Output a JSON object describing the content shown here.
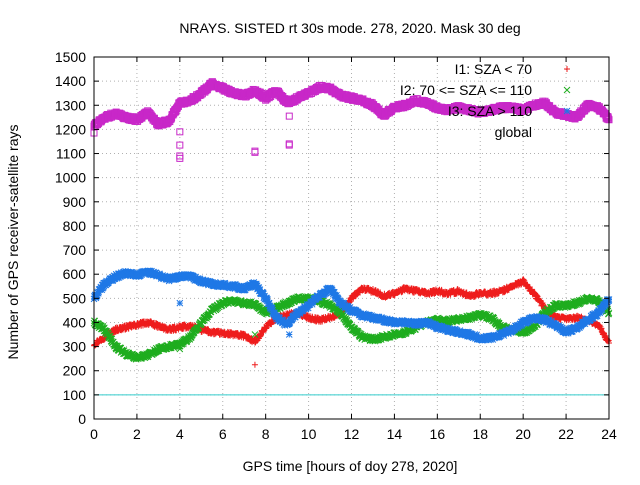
{
  "chart_data": {
    "type": "scatter",
    "title": "NRAYS. SISTED rt 30s mode. 278, 2020. Mask 30 deg",
    "xlabel": "GPS time [hours of doy 278, 2020]",
    "ylabel": "Number of GPS receiver-satellite rays",
    "xlim": [
      0,
      24
    ],
    "ylim": [
      0,
      1500
    ],
    "x_ticks": [
      "0",
      "2",
      "4",
      "6",
      "8",
      "10",
      "12",
      "14",
      "16",
      "18",
      "20",
      "22",
      "24"
    ],
    "y_ticks": [
      "0",
      "100",
      "200",
      "300",
      "400",
      "500",
      "600",
      "700",
      "800",
      "900",
      "1000",
      "1100",
      "1200",
      "1300",
      "1400",
      "1500"
    ],
    "grid": true,
    "legend_position": "top-right",
    "threshold_line": {
      "y": 100,
      "color": "#33cccc"
    },
    "series": [
      {
        "name": "I1: SZA < 70",
        "color": "#ee1c1c",
        "marker": "plus",
        "x": [
          0,
          0.5,
          1,
          1.5,
          2,
          2.5,
          3,
          3.5,
          4,
          4.5,
          5,
          5.5,
          6,
          6.5,
          7,
          7.5,
          8,
          8.5,
          9,
          9.5,
          10,
          10.5,
          11,
          11.5,
          12,
          12.5,
          13,
          13.5,
          14,
          14.5,
          15,
          15.5,
          16,
          16.5,
          17,
          17.5,
          18,
          18.5,
          19,
          19.5,
          20,
          20.5,
          21,
          21.5,
          22,
          22.5,
          23,
          23.5,
          24
        ],
        "values": [
          310,
          340,
          370,
          380,
          390,
          400,
          385,
          370,
          380,
          385,
          370,
          360,
          355,
          350,
          345,
          320,
          380,
          420,
          430,
          440,
          420,
          410,
          420,
          440,
          500,
          540,
          530,
          510,
          520,
          540,
          530,
          520,
          530,
          520,
          530,
          510,
          520,
          520,
          530,
          550,
          570,
          520,
          460,
          420,
          415,
          420,
          410,
          390,
          315
        ],
        "outliers": [
          {
            "x": 7.5,
            "y": 225
          },
          {
            "x": 9.2,
            "y": 430
          }
        ]
      },
      {
        "name": "I2: 70 <= SZA <= 110",
        "color": "#1fad1f",
        "marker": "cross",
        "x": [
          0,
          0.5,
          1,
          1.5,
          2,
          2.5,
          3,
          3.5,
          4,
          4.5,
          5,
          5.5,
          6,
          6.5,
          7,
          7.5,
          8,
          8.5,
          9,
          9.5,
          10,
          10.5,
          11,
          11.5,
          12,
          12.5,
          13,
          13.5,
          14,
          14.5,
          15,
          15.5,
          16,
          16.5,
          17,
          17.5,
          18,
          18.5,
          19,
          19.5,
          20,
          20.5,
          21,
          21.5,
          22,
          22.5,
          23,
          23.5,
          24
        ],
        "values": [
          400,
          370,
          300,
          270,
          255,
          265,
          290,
          300,
          310,
          340,
          400,
          450,
          480,
          490,
          480,
          475,
          440,
          460,
          480,
          500,
          500,
          490,
          470,
          440,
          380,
          340,
          330,
          340,
          350,
          360,
          380,
          400,
          410,
          405,
          415,
          420,
          430,
          420,
          380,
          370,
          360,
          380,
          440,
          470,
          470,
          480,
          500,
          490,
          440
        ],
        "outliers": [
          {
            "x": 4,
            "y": 290
          },
          {
            "x": 7.5,
            "y": 350
          }
        ]
      },
      {
        "name": "I3: SZA > 110",
        "color": "#1f78e6",
        "marker": "star",
        "x": [
          0,
          0.5,
          1,
          1.5,
          2,
          2.5,
          3,
          3.5,
          4,
          4.5,
          5,
          5.5,
          6,
          6.5,
          7,
          7.5,
          8,
          8.5,
          9,
          9.5,
          10,
          10.5,
          11,
          11.5,
          12,
          12.5,
          13,
          13.5,
          14,
          14.5,
          15,
          15.5,
          16,
          16.5,
          17,
          17.5,
          18,
          18.5,
          19,
          19.5,
          20,
          20.5,
          21,
          21.5,
          22,
          22.5,
          23,
          23.5,
          24
        ],
        "values": [
          500,
          560,
          590,
          605,
          595,
          610,
          595,
          580,
          590,
          590,
          570,
          560,
          555,
          550,
          540,
          560,
          500,
          420,
          390,
          440,
          470,
          510,
          540,
          480,
          450,
          430,
          420,
          410,
          400,
          400,
          395,
          400,
          380,
          370,
          360,
          350,
          335,
          335,
          350,
          370,
          400,
          420,
          410,
          390,
          360,
          380,
          410,
          440,
          495
        ],
        "outliers": [
          {
            "x": 4,
            "y": 480
          },
          {
            "x": 9.1,
            "y": 350
          }
        ]
      },
      {
        "name": "global",
        "color": "#c828c8",
        "marker": "square",
        "x": [
          0,
          0.5,
          1,
          1.5,
          2,
          2.5,
          3,
          3.5,
          4,
          4.5,
          5,
          5.5,
          6,
          6.5,
          7,
          7.5,
          8,
          8.5,
          9,
          9.5,
          10,
          10.5,
          11,
          11.5,
          12,
          12.5,
          13,
          13.5,
          14,
          14.5,
          15,
          15.5,
          16,
          16.5,
          17,
          17.5,
          18,
          18.5,
          19,
          19.5,
          20,
          20.5,
          21,
          21.5,
          22,
          22.5,
          23,
          23.5,
          24
        ],
        "values": [
          1215,
          1250,
          1265,
          1250,
          1240,
          1270,
          1220,
          1235,
          1310,
          1320,
          1350,
          1390,
          1370,
          1350,
          1340,
          1360,
          1330,
          1360,
          1310,
          1330,
          1350,
          1375,
          1370,
          1340,
          1330,
          1320,
          1300,
          1260,
          1290,
          1300,
          1320,
          1310,
          1290,
          1280,
          1290,
          1280,
          1270,
          1280,
          1290,
          1290,
          1280,
          1300,
          1310,
          1270,
          1260,
          1250,
          1300,
          1290,
          1240
        ],
        "outliers": [
          {
            "x": 0,
            "y": 1185
          },
          {
            "x": 4,
            "y": 1190
          },
          {
            "x": 4,
            "y": 1135
          },
          {
            "x": 4,
            "y": 1090
          },
          {
            "x": 4,
            "y": 1080
          },
          {
            "x": 7.5,
            "y": 1110
          },
          {
            "x": 7.5,
            "y": 1105
          },
          {
            "x": 9.1,
            "y": 1255
          },
          {
            "x": 9.1,
            "y": 1140
          },
          {
            "x": 9.1,
            "y": 1135
          }
        ]
      }
    ]
  }
}
